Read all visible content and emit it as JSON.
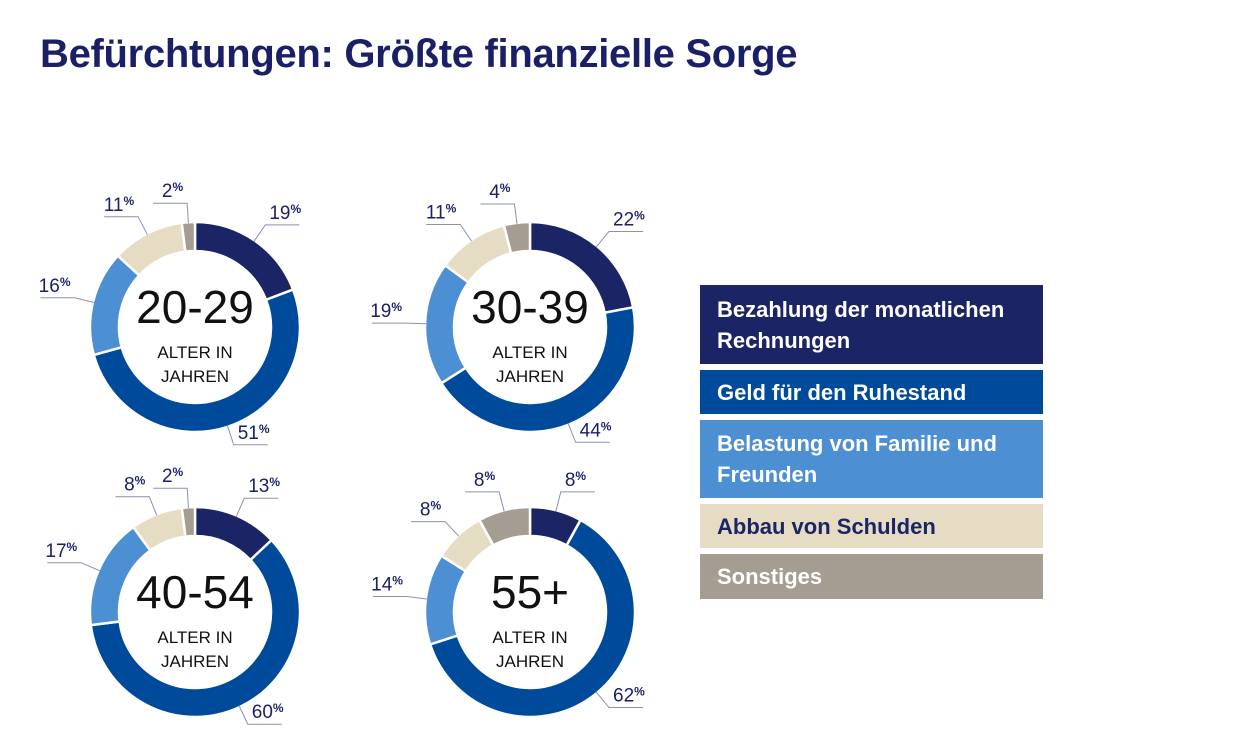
{
  "title": "Befürchtungen: Größte finanzielle Sorge",
  "legend": {
    "items": [
      {
        "label": "Bezahlung der monatlichen Rechnungen",
        "color": "#1b2566",
        "text_color": "#ffffff"
      },
      {
        "label": "Geld für den Ruhestand",
        "color": "#004a9c",
        "text_color": "#ffffff"
      },
      {
        "label": "Belastung von Familie und Freunden",
        "color": "#4d8fd3",
        "text_color": "#ffffff"
      },
      {
        "label": "Abbau von Schulden",
        "color": "#e6dcc4",
        "text_color": "#1b2566"
      },
      {
        "label": "Sonstiges",
        "color": "#a69d92",
        "text_color": "#ffffff"
      }
    ]
  },
  "chart_data": [
    {
      "type": "pie",
      "center_label": "20-29",
      "sub_label": [
        "ALTER IN",
        "JAHREN"
      ],
      "categories": [
        "Bezahlung der monatlichen Rechnungen",
        "Geld für den Ruhestand",
        "Belastung von Familie und Freunden",
        "Abbau von Schulden",
        "Sonstiges"
      ],
      "values": [
        19,
        51,
        16,
        11,
        2
      ],
      "unit": "%"
    },
    {
      "type": "pie",
      "center_label": "30-39",
      "sub_label": [
        "ALTER IN",
        "JAHREN"
      ],
      "categories": [
        "Bezahlung der monatlichen Rechnungen",
        "Geld für den Ruhestand",
        "Belastung von Familie und Freunden",
        "Abbau von Schulden",
        "Sonstiges"
      ],
      "values": [
        22,
        44,
        19,
        11,
        4
      ],
      "unit": "%"
    },
    {
      "type": "pie",
      "center_label": "40-54",
      "sub_label": [
        "ALTER IN",
        "JAHREN"
      ],
      "categories": [
        "Bezahlung der monatlichen Rechnungen",
        "Geld für den Ruhestand",
        "Belastung von Familie und Freunden",
        "Abbau von Schulden",
        "Sonstiges"
      ],
      "values": [
        13,
        60,
        17,
        8,
        2
      ],
      "unit": "%"
    },
    {
      "type": "pie",
      "center_label": "55+",
      "sub_label": [
        "ALTER IN",
        "JAHREN"
      ],
      "categories": [
        "Bezahlung der monatlichen Rechnungen",
        "Geld für den Ruhestand",
        "Belastung von Familie und Freunden",
        "Abbau von Schulden",
        "Sonstiges"
      ],
      "values": [
        8,
        62,
        14,
        8,
        8
      ],
      "unit": "%"
    }
  ]
}
